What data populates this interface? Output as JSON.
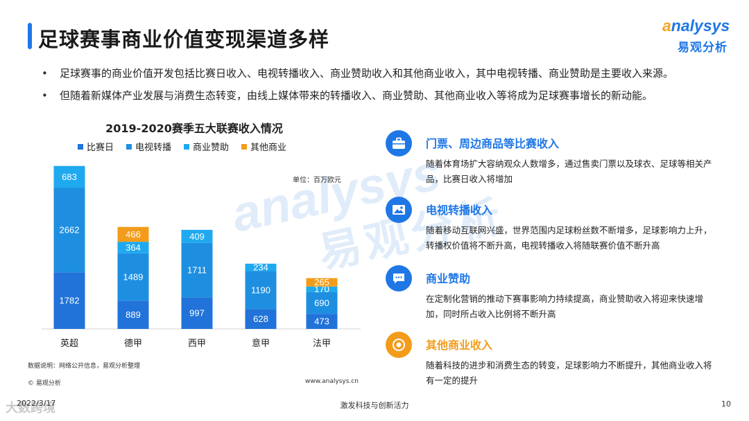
{
  "page": {
    "title": "足球赛事商业价值变现渠道多样",
    "bullets": [
      "足球赛事的商业价值开发包括比赛日收入、电视转播收入、商业赞助收入和其他商业收入，其中电视转播、商业赞助是主要收入来源。",
      "但随着新媒体产业发展与消费生态转变，由线上媒体带来的转播收入、商业赞助、其他商业收入等将成为足球赛事增长的新动能。"
    ]
  },
  "logo": {
    "en_o": "a",
    "en_rest": "nalysys",
    "cn": "易观分析"
  },
  "watermark": {
    "en": "analysys",
    "cn": "易观分析"
  },
  "chart_data": {
    "type": "bar",
    "stacked": true,
    "title": "2019-2020赛季五大联赛收入情况",
    "unit_label": "单位：百万欧元",
    "categories": [
      "英超",
      "德甲",
      "西甲",
      "意甲",
      "法甲"
    ],
    "series": [
      {
        "name": "比赛日",
        "color": "#2173d9",
        "values": [
          1782,
          889,
          997,
          628,
          473
        ]
      },
      {
        "name": "电视转播",
        "color": "#1e8fe0",
        "values": [
          2662,
          1489,
          1711,
          1190,
          690
        ]
      },
      {
        "name": "商业赞助",
        "color": "#1fa9ef",
        "values": [
          683,
          364,
          409,
          234,
          170
        ]
      },
      {
        "name": "其他商业",
        "color": "#f39c1b",
        "values": [
          0,
          466,
          0,
          0,
          265
        ]
      }
    ],
    "data_labels": [
      [
        "1782",
        "2662",
        "683",
        ""
      ],
      [
        "889",
        "1489",
        "364",
        "466"
      ],
      [
        "997",
        "1711",
        "409",
        ""
      ],
      [
        "628",
        "1190",
        "234",
        ""
      ],
      [
        "473",
        "690",
        "170",
        "265"
      ]
    ],
    "ylim": [
      0,
      5500
    ],
    "legend_position": "top",
    "grid": false
  },
  "chart_notes": {
    "source": "数据说明：网络公开信息，易观分析整理",
    "copyright": "© 易观分析",
    "url": "www.analysys.cn"
  },
  "channels": [
    {
      "title": "门票、周边商品等比赛收入",
      "icon": "briefcase-icon",
      "color": "#1f77e6",
      "desc": "随着体育场扩大容纳观众人数增多，通过售卖门票以及球衣、足球等相关产品，比赛日收入将增加"
    },
    {
      "title": "电视转播收入",
      "icon": "image-icon",
      "color": "#1f77e6",
      "desc": "随着移动互联网兴盛，世界范围内足球粉丝数不断增多，足球影响力上升，转播权价值将不断升高，电视转播收入将随联赛价值不断升高"
    },
    {
      "title": "商业赞助",
      "icon": "chat-icon",
      "color": "#1f77e6",
      "desc": "在定制化营销的推动下赛事影响力持续提高，商业赞助收入将迎来快速增加，同时所占收入比例将不断升高"
    },
    {
      "title": "其他商业收入",
      "icon": "target-icon",
      "color": "#f39c1b",
      "desc": "随着科技的进步和消费生态的转变，足球影响力不断提升，其他商业收入将有一定的提升"
    }
  ],
  "footer": {
    "date": "2022/3/17",
    "brand": "大数跨境",
    "center": "激发科技与创新活力",
    "page_num": "10"
  }
}
